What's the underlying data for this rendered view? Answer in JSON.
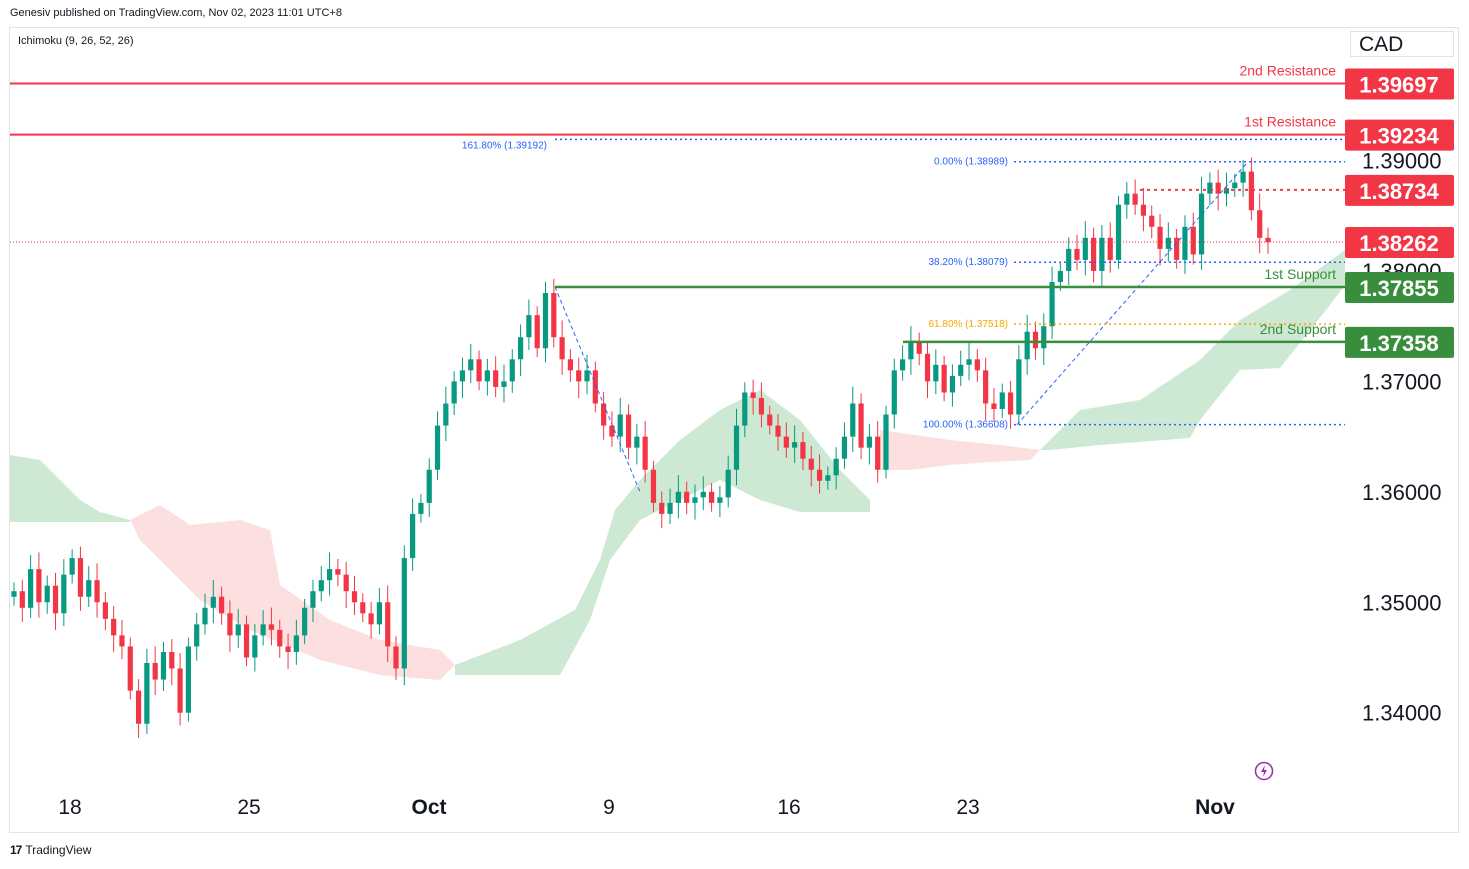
{
  "header": {
    "published": "Genesiv published on TradingView.com, Nov 02, 2023 11:01 UTC+8",
    "indicator": "Ichimoku (9, 26, 52, 26)",
    "currency": "CAD"
  },
  "footer": {
    "logo_mark": "17",
    "brand": "TradingView"
  },
  "colors": {
    "bull": "#089981",
    "bear": "#f23645",
    "resistance": "#f23645",
    "support": "#388e3c",
    "cloud_bull": "#cde9d4",
    "cloud_bear": "#fce0df",
    "fib": "#2962ff",
    "fib618": "#f7a600"
  },
  "chart_data": {
    "type": "candlestick",
    "symbol_currency": "CAD",
    "y_ticks": [
      "1.34000",
      "1.35000",
      "1.36000",
      "1.37000",
      "1.38000",
      "1.39000"
    ],
    "x_ticks": [
      "18",
      "25",
      "Oct",
      "9",
      "16",
      "23",
      "Nov"
    ],
    "ylim": [
      1.333,
      1.402
    ],
    "levels": [
      {
        "name": "2nd Resistance",
        "value": "1.39697",
        "kind": "resistance"
      },
      {
        "name": "1st Resistance",
        "value": "1.39234",
        "kind": "resistance"
      },
      {
        "name": "",
        "value": "1.38734",
        "kind": "resistance-dotted"
      },
      {
        "name": "",
        "value": "1.38262",
        "kind": "last-price"
      },
      {
        "name": "1st Support",
        "value": "1.37855",
        "kind": "support"
      },
      {
        "name": "2nd Support",
        "value": "1.37358",
        "kind": "support"
      }
    ],
    "fibonacci": [
      {
        "label": "161.80% (1.39192)",
        "value": 1.39192
      },
      {
        "label": "0.00% (1.38989)",
        "value": 1.38989
      },
      {
        "label": "38.20% (1.38079)",
        "value": 1.38079
      },
      {
        "label": "61.80% (1.37518)",
        "value": 1.37518
      },
      {
        "label": "100.00% (1.36608)",
        "value": 1.36608
      }
    ],
    "closes": [
      1.351,
      1.3495,
      1.353,
      1.35,
      1.3515,
      1.349,
      1.3525,
      1.354,
      1.3505,
      1.352,
      1.35,
      1.3485,
      1.347,
      1.346,
      1.342,
      1.339,
      1.3445,
      1.343,
      1.3455,
      1.344,
      1.34,
      1.346,
      1.348,
      1.3495,
      1.3505,
      1.349,
      1.347,
      1.348,
      1.345,
      1.347,
      1.348,
      1.3475,
      1.346,
      1.3455,
      1.347,
      1.3495,
      1.351,
      1.352,
      1.353,
      1.3525,
      1.351,
      1.35,
      1.349,
      1.348,
      1.35,
      1.346,
      1.344,
      1.354,
      1.358,
      1.359,
      1.362,
      1.366,
      1.368,
      1.37,
      1.371,
      1.372,
      1.37,
      1.371,
      1.3695,
      1.37,
      1.372,
      1.374,
      1.376,
      1.373,
      1.378,
      1.374,
      1.372,
      1.371,
      1.37,
      1.371,
      1.368,
      1.366,
      1.365,
      1.367,
      1.364,
      1.365,
      1.362,
      1.359,
      1.358,
      1.359,
      1.36,
      1.359,
      1.3595,
      1.36,
      1.359,
      1.3595,
      1.362,
      1.366,
      1.369,
      1.3685,
      1.367,
      1.366,
      1.365,
      1.364,
      1.3645,
      1.363,
      1.362,
      1.361,
      1.3615,
      1.363,
      1.365,
      1.368,
      1.364,
      1.365,
      1.362,
      1.367,
      1.371,
      1.372,
      1.3735,
      1.3725,
      1.37,
      1.3715,
      1.369,
      1.3705,
      1.3715,
      1.372,
      1.371,
      1.368,
      1.3675,
      1.369,
      1.367,
      1.372,
      1.3745,
      1.373,
      1.375,
      1.379,
      1.38,
      1.382,
      1.381,
      1.383,
      1.38,
      1.383,
      1.381,
      1.386,
      1.387,
      1.386,
      1.385,
      1.384,
      1.382,
      1.383,
      1.381,
      1.384,
      1.3815,
      1.387,
      1.388,
      1.387,
      1.3875,
      1.388,
      1.389,
      1.3855,
      1.383,
      1.3826
    ]
  }
}
